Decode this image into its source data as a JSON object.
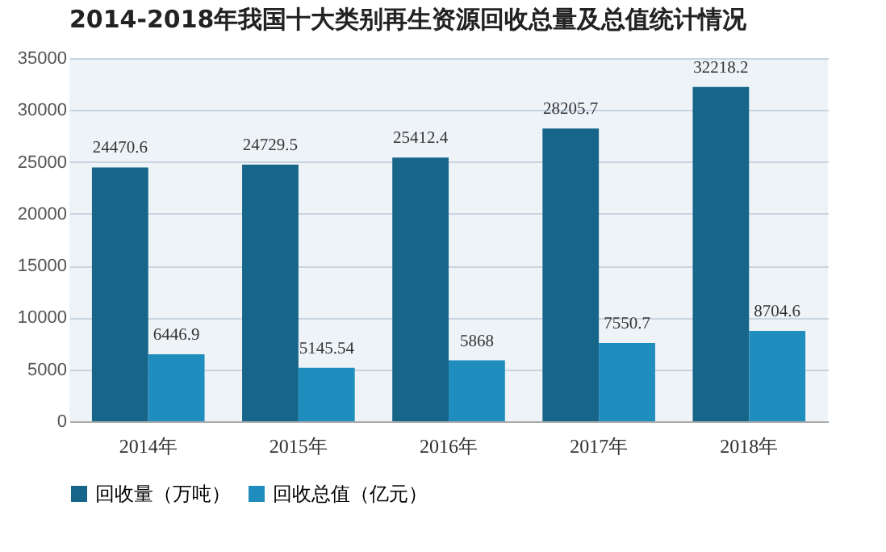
{
  "chart_data": {
    "type": "bar",
    "title": "2014-2018年我国十大类别再生资源回收总量及总值统计情况",
    "categories": [
      "2014年",
      "2015年",
      "2016年",
      "2017年",
      "2018年"
    ],
    "series": [
      {
        "name": "回收量（万吨）",
        "color": "#17668a",
        "values": [
          24470.6,
          24729.5,
          25412.4,
          28205.7,
          32218.2
        ]
      },
      {
        "name": "回收总值（亿元）",
        "color": "#1f8dbd",
        "values": [
          6446.9,
          5145.54,
          5868,
          7550.7,
          8704.6
        ]
      }
    ],
    "ylim": [
      0,
      35000
    ],
    "yticks": [
      0,
      5000,
      10000,
      15000,
      20000,
      25000,
      30000,
      35000
    ],
    "grid": "y",
    "legend": "bottom",
    "data_labels": true
  }
}
